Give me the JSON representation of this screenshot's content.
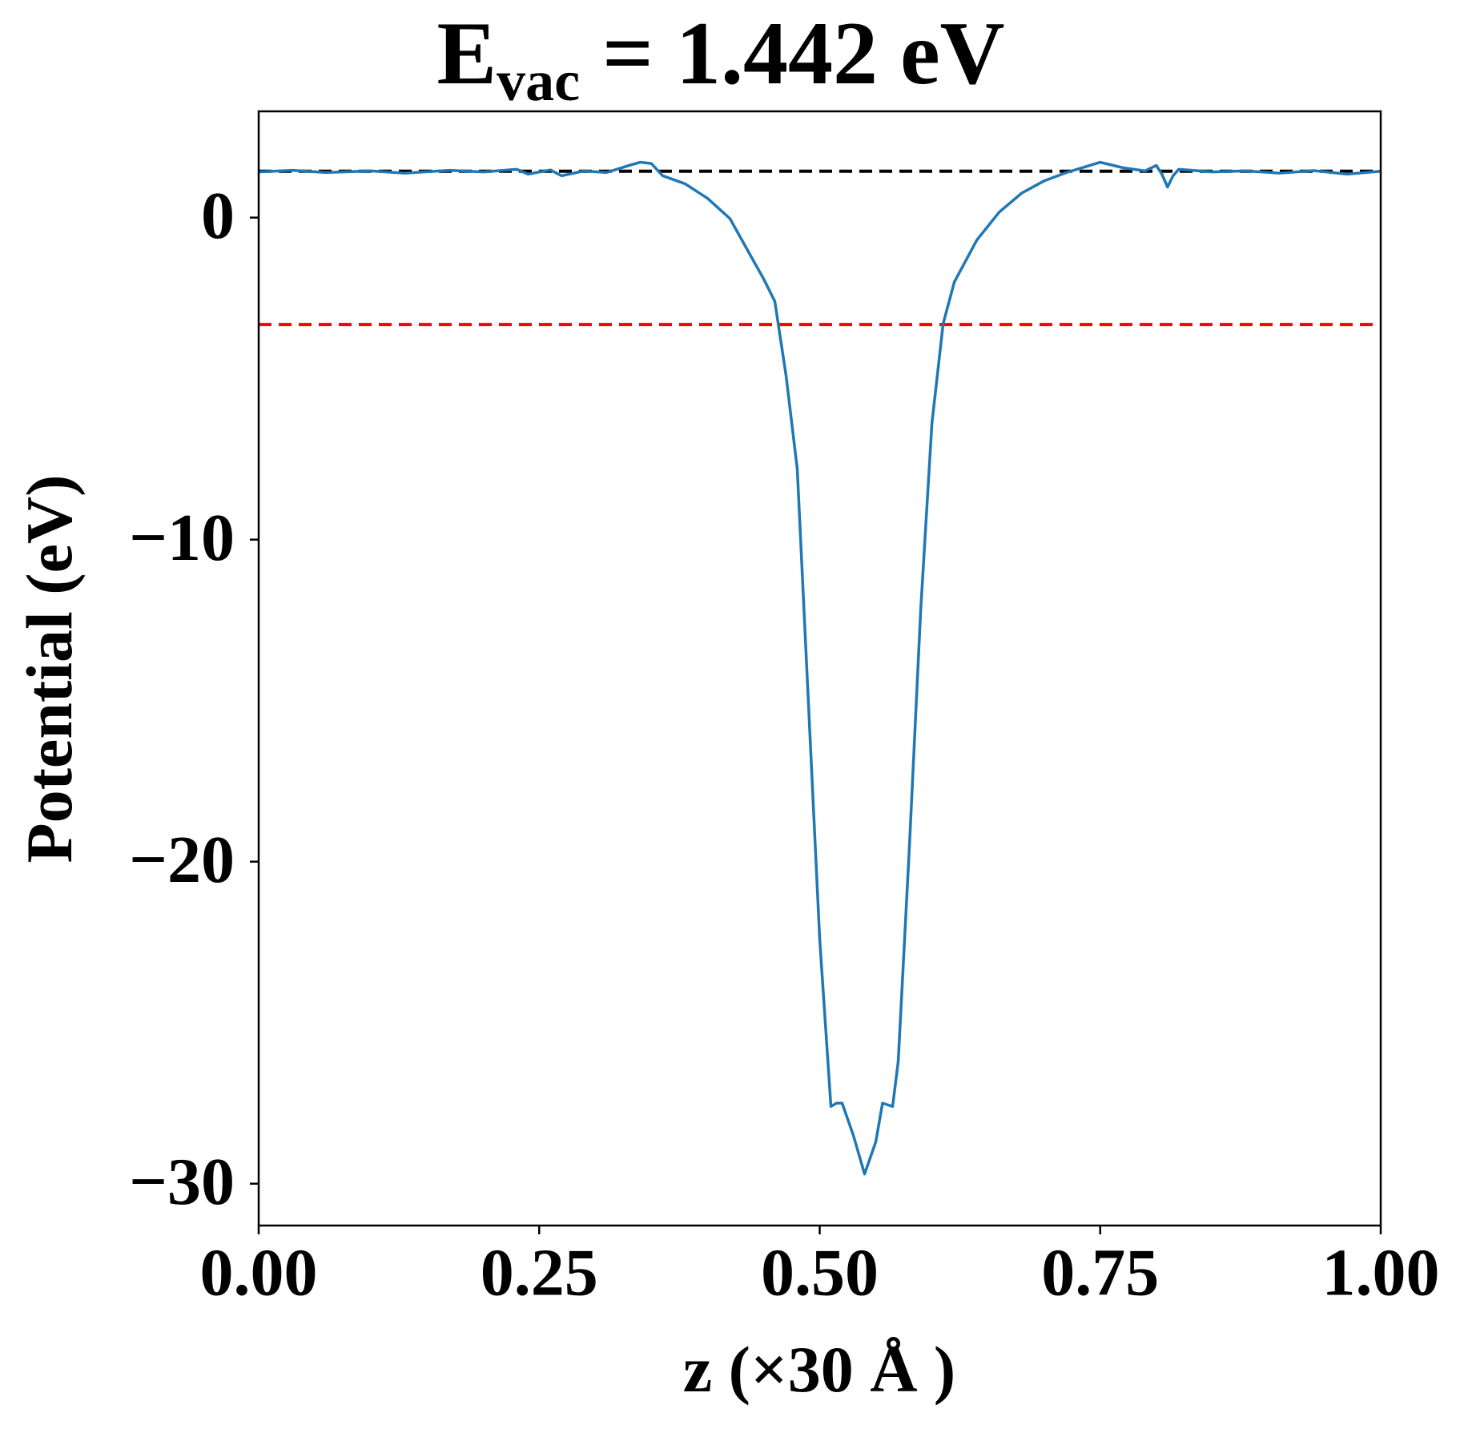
{
  "chart_data": {
    "type": "line",
    "title": "E",
    "title_subscript": "vac",
    "title_rest": " = 1.442 eV",
    "x_label": "z (×30 Å )",
    "y_label": "Potential (eV)",
    "xlim": [
      0,
      1
    ],
    "ylim": [
      -31.3,
      3.3
    ],
    "xticks": [
      {
        "value": 0,
        "label": "0.00"
      },
      {
        "value": 0.25,
        "label": "0.25"
      },
      {
        "value": 0.5,
        "label": "0.50"
      },
      {
        "value": 0.75,
        "label": "0.75"
      },
      {
        "value": 1,
        "label": "1.00"
      }
    ],
    "yticks": [
      {
        "value": 0,
        "label": "0"
      },
      {
        "value": -10,
        "label": "−10"
      },
      {
        "value": -20,
        "label": "−20"
      },
      {
        "value": -30,
        "label": "−30"
      }
    ],
    "hlines": [
      {
        "value": 1.442,
        "color": "#000000"
      },
      {
        "value": -3.32,
        "color": "#ff0000"
      }
    ],
    "series": [
      {
        "color": "#1f77b4",
        "x": [
          0,
          0.03,
          0.06,
          0.1,
          0.13,
          0.17,
          0.2,
          0.23,
          0.24,
          0.26,
          0.27,
          0.29,
          0.31,
          0.33,
          0.34,
          0.35,
          0.36,
          0.38,
          0.4,
          0.42,
          0.44,
          0.45,
          0.46,
          0.47,
          0.48,
          0.49,
          0.5,
          0.51,
          0.515,
          0.52,
          0.53,
          0.54,
          0.55,
          0.556,
          0.565,
          0.57,
          0.58,
          0.59,
          0.6,
          0.61,
          0.62,
          0.64,
          0.66,
          0.68,
          0.7,
          0.72,
          0.75,
          0.77,
          0.79,
          0.8,
          0.805,
          0.81,
          0.815,
          0.82,
          0.85,
          0.88,
          0.91,
          0.94,
          0.97,
          1
        ],
        "values": [
          1.42,
          1.47,
          1.4,
          1.45,
          1.38,
          1.47,
          1.42,
          1.5,
          1.35,
          1.48,
          1.3,
          1.45,
          1.4,
          1.62,
          1.72,
          1.68,
          1.3,
          1.05,
          0.6,
          -0.03,
          -1.28,
          -1.9,
          -2.6,
          -4.9,
          -7.8,
          -15.1,
          -22.4,
          -27.6,
          -27.5,
          -27.5,
          -28.5,
          -29.7,
          -28.7,
          -27.5,
          -27.6,
          -26.2,
          -19.5,
          -12.2,
          -6.4,
          -3.3,
          -2.0,
          -0.7,
          0.17,
          0.76,
          1.14,
          1.4,
          1.72,
          1.55,
          1.45,
          1.62,
          1.35,
          0.95,
          1.3,
          1.5,
          1.42,
          1.45,
          1.38,
          1.46,
          1.35,
          1.44
        ]
      }
    ]
  }
}
